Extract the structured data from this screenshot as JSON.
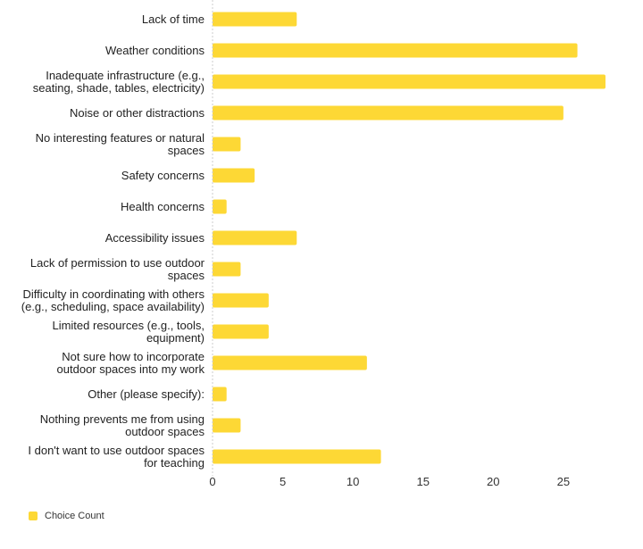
{
  "chart_data": {
    "type": "bar",
    "orientation": "horizontal",
    "categories": [
      "Lack of time",
      "Weather conditions",
      "Inadequate infrastructure (e.g., seating, shade, tables, electricity)",
      "Noise or other distractions",
      "No interesting features or natural spaces",
      "Safety concerns",
      "Health concerns",
      "Accessibility issues",
      "Lack of permission to use outdoor spaces",
      "Difficulty in coordinating with others (e.g., scheduling, space availability)",
      "Limited resources (e.g., tools, equipment)",
      "Not sure how to incorporate outdoor spaces into my work",
      "Other (please specify):",
      "Nothing prevents me from using outdoor spaces",
      "I don't want to use outdoor spaces for teaching"
    ],
    "category_label_lines": [
      [
        "Lack of time"
      ],
      [
        "Weather conditions"
      ],
      [
        "Inadequate infrastructure (e.g.,",
        "seating, shade, tables, electricity)"
      ],
      [
        "Noise or other distractions"
      ],
      [
        "No interesting features or natural",
        "spaces"
      ],
      [
        "Safety concerns"
      ],
      [
        "Health concerns"
      ],
      [
        "Accessibility issues"
      ],
      [
        "Lack of permission to use outdoor",
        "spaces"
      ],
      [
        "Difficulty in coordinating with others",
        "(e.g., scheduling, space availability)"
      ],
      [
        "Limited resources (e.g., tools,",
        "equipment)"
      ],
      [
        "Not sure how to incorporate",
        "outdoor spaces into my work"
      ],
      [
        "Other (please specify):"
      ],
      [
        "Nothing prevents me from using",
        "outdoor spaces"
      ],
      [
        "I don't want to use outdoor spaces",
        "for teaching"
      ]
    ],
    "series": [
      {
        "name": "Choice Count",
        "values": [
          6,
          26,
          28,
          25,
          2,
          3,
          1,
          6,
          2,
          4,
          4,
          11,
          1,
          2,
          12
        ]
      }
    ],
    "xlim": [
      0,
      28
    ],
    "xticks": [
      0,
      5,
      10,
      15,
      20,
      25
    ],
    "grid": false,
    "legend_position": "bottom-left",
    "colors": {
      "bar": "#FDD835",
      "axis": "#cccccc"
    }
  }
}
